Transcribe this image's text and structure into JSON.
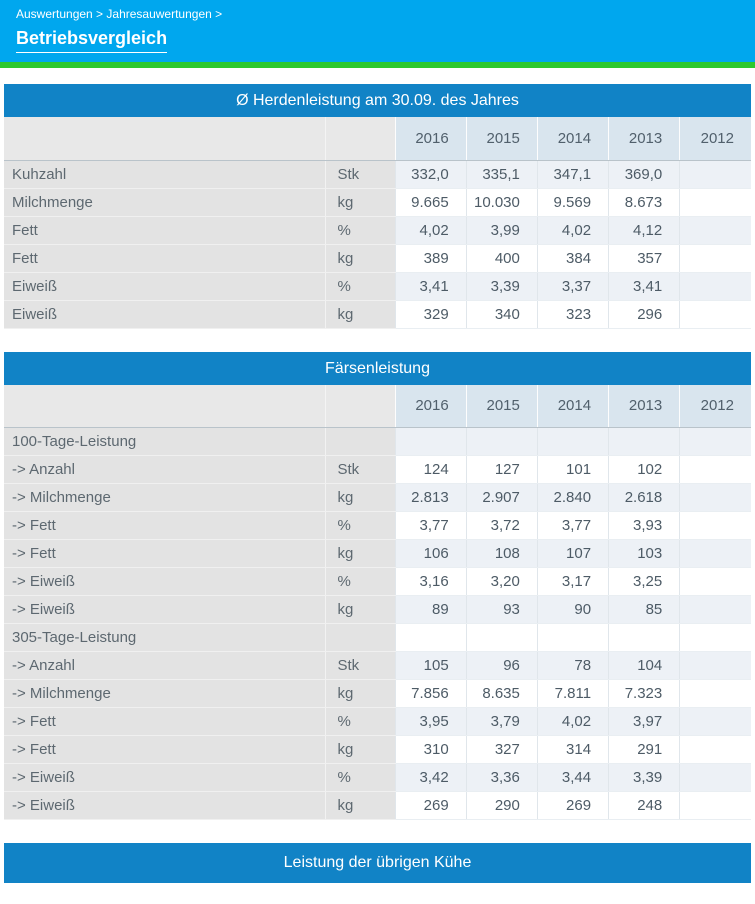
{
  "page": {
    "breadcrumb": "Auswertungen > Jahresauwertungen >",
    "title": "Betriebsvergleich"
  },
  "colors": {
    "app_header": "#00a7ee",
    "accent_green": "#2ec82e",
    "table_header": "#1183c6",
    "year_header_bg": "#d9e5ee",
    "row_tint": "#edf1f6",
    "label_col_bg": "#e3e3e3",
    "header_left_bg": "#e8e8e8"
  },
  "years": [
    "2016",
    "2015",
    "2014",
    "2013",
    "2012"
  ],
  "tables": [
    {
      "title": "Ø Herdenleistung am 30.09. des Jahres",
      "rows": [
        {
          "label": "Kuhzahl",
          "unit": "Stk",
          "values": [
            "332,0",
            "335,1",
            "347,1",
            "369,0",
            ""
          ]
        },
        {
          "label": "Milchmenge",
          "unit": "kg",
          "values": [
            "9.665",
            "10.030",
            "9.569",
            "8.673",
            ""
          ]
        },
        {
          "label": "Fett",
          "unit": "%",
          "values": [
            "4,02",
            "3,99",
            "4,02",
            "4,12",
            ""
          ]
        },
        {
          "label": "Fett",
          "unit": "kg",
          "values": [
            "389",
            "400",
            "384",
            "357",
            ""
          ]
        },
        {
          "label": "Eiweiß",
          "unit": "%",
          "values": [
            "3,41",
            "3,39",
            "3,37",
            "3,41",
            ""
          ]
        },
        {
          "label": "Eiweiß",
          "unit": "kg",
          "values": [
            "329",
            "340",
            "323",
            "296",
            ""
          ]
        }
      ]
    },
    {
      "title": "Färsenleistung",
      "rows": [
        {
          "label": "100-Tage-Leistung",
          "unit": "",
          "values": [
            "",
            "",
            "",
            "",
            ""
          ]
        },
        {
          "label": "-> Anzahl",
          "unit": "Stk",
          "values": [
            "124",
            "127",
            "101",
            "102",
            ""
          ]
        },
        {
          "label": "-> Milchmenge",
          "unit": "kg",
          "values": [
            "2.813",
            "2.907",
            "2.840",
            "2.618",
            ""
          ]
        },
        {
          "label": "-> Fett",
          "unit": "%",
          "values": [
            "3,77",
            "3,72",
            "3,77",
            "3,93",
            ""
          ]
        },
        {
          "label": "-> Fett",
          "unit": "kg",
          "values": [
            "106",
            "108",
            "107",
            "103",
            ""
          ]
        },
        {
          "label": "-> Eiweiß",
          "unit": "%",
          "values": [
            "3,16",
            "3,20",
            "3,17",
            "3,25",
            ""
          ]
        },
        {
          "label": "-> Eiweiß",
          "unit": "kg",
          "values": [
            "89",
            "93",
            "90",
            "85",
            ""
          ]
        },
        {
          "label": "305-Tage-Leistung",
          "unit": "",
          "values": [
            "",
            "",
            "",
            "",
            ""
          ]
        },
        {
          "label": "-> Anzahl",
          "unit": "Stk",
          "values": [
            "105",
            "96",
            "78",
            "104",
            ""
          ]
        },
        {
          "label": "-> Milchmenge",
          "unit": "kg",
          "values": [
            "7.856",
            "8.635",
            "7.811",
            "7.323",
            ""
          ]
        },
        {
          "label": "-> Fett",
          "unit": "%",
          "values": [
            "3,95",
            "3,79",
            "4,02",
            "3,97",
            ""
          ]
        },
        {
          "label": "-> Fett",
          "unit": "kg",
          "values": [
            "310",
            "327",
            "314",
            "291",
            ""
          ]
        },
        {
          "label": "-> Eiweiß",
          "unit": "%",
          "values": [
            "3,42",
            "3,36",
            "3,44",
            "3,39",
            ""
          ]
        },
        {
          "label": "-> Eiweiß",
          "unit": "kg",
          "values": [
            "269",
            "290",
            "269",
            "248",
            ""
          ]
        }
      ]
    },
    {
      "title": "Leistung der übrigen Kühe",
      "rows": []
    }
  ]
}
